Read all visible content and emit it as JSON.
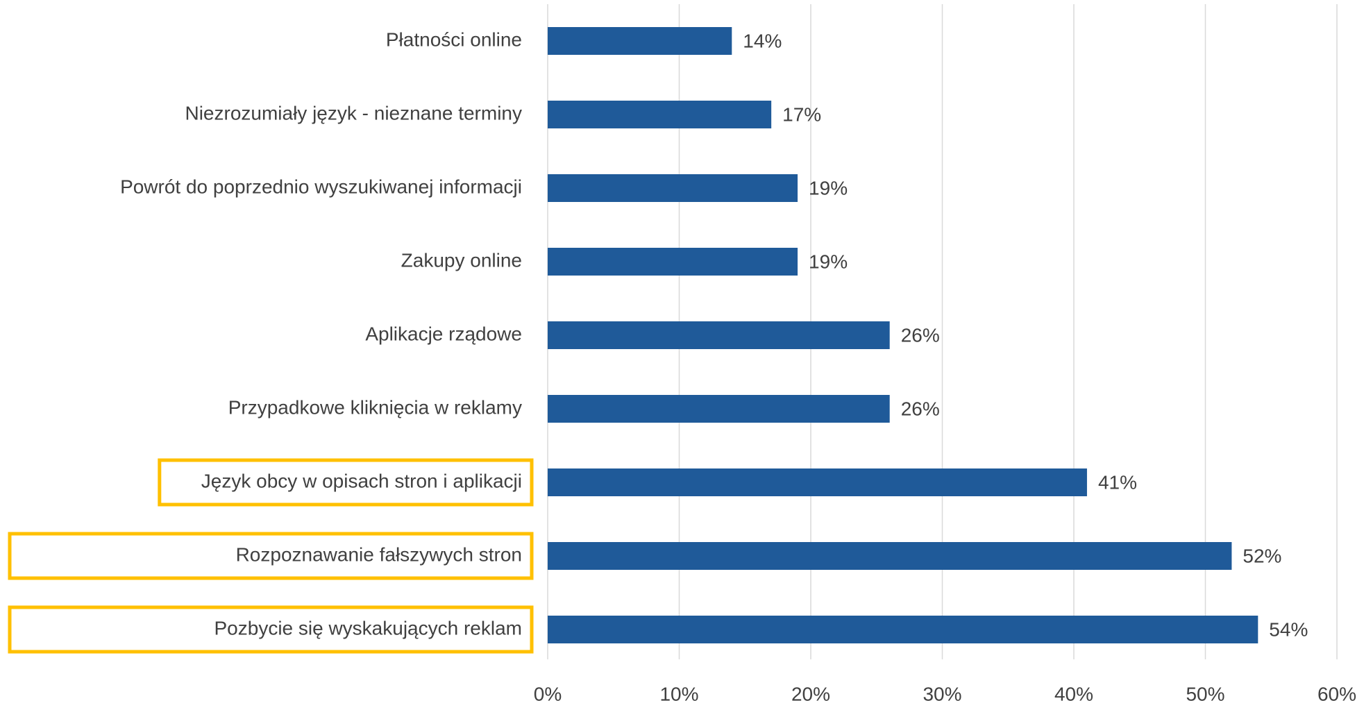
{
  "chart_data": {
    "type": "barh",
    "categories": [
      "Płatności online",
      "Niezrozumiały język - nieznane terminy",
      "Powrót do poprzednio wyszukiwanej informacji",
      "Zakupy online",
      "Aplikacje rządowe",
      "Przypadkowe kliknięcia w reklamy",
      "Język obcy w opisach stron i aplikacji",
      "Rozpoznawanie fałszywych stron",
      "Pozbycie się wyskakujących reklam"
    ],
    "values": [
      14,
      17,
      19,
      19,
      26,
      26,
      41,
      52,
      54
    ],
    "value_labels": [
      "14%",
      "17%",
      "19%",
      "19%",
      "26%",
      "26%",
      "41%",
      "52%",
      "54%"
    ],
    "color": "#1f5a99",
    "highlighted": [
      false,
      false,
      false,
      false,
      false,
      false,
      true,
      true,
      true
    ],
    "highlight_color": "#ffc000",
    "xlim": [
      0,
      60
    ],
    "xticks": [
      {
        "value": 0,
        "label": "0%"
      },
      {
        "value": 10,
        "label": "10%"
      },
      {
        "value": 20,
        "label": "20%"
      },
      {
        "value": 30,
        "label": "30%"
      },
      {
        "value": 40,
        "label": "40%"
      },
      {
        "value": 50,
        "label": "50%"
      },
      {
        "value": 60,
        "label": "60%"
      }
    ],
    "grid": true
  }
}
